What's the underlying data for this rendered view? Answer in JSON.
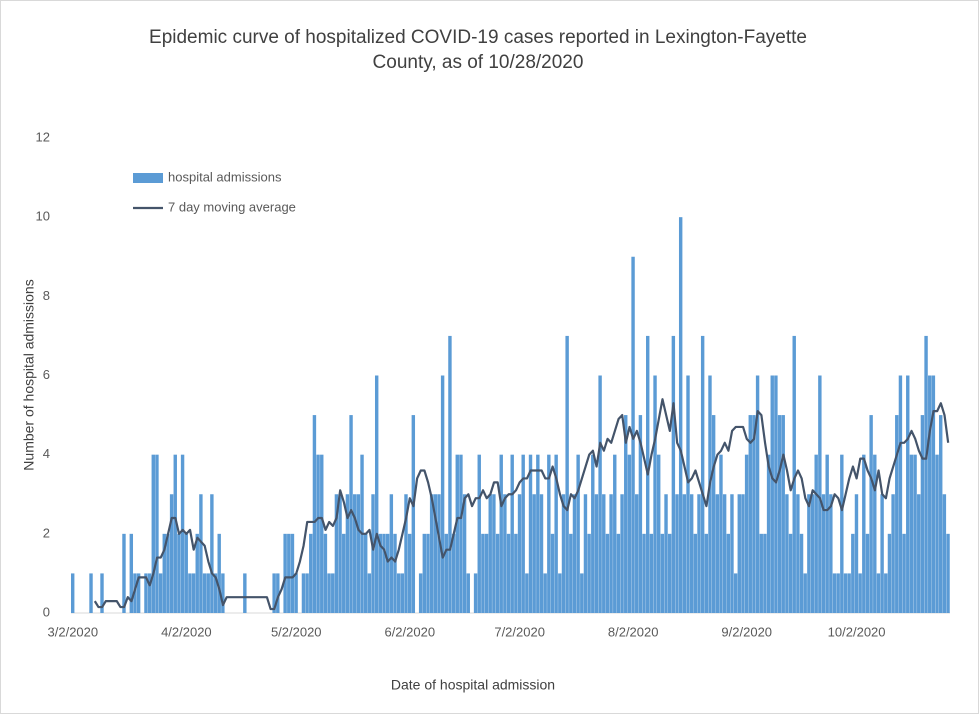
{
  "chart_data": {
    "type": "bar-line",
    "title": [
      "Epidemic curve of hospitalized COVID-19 cases reported in Lexington-Fayette",
      "County, as of 10/28/2020"
    ],
    "x_label": "Date of hospital admission",
    "y_label": "Number of hospital admissions",
    "legend": "top-left",
    "categories": [
      "3/2/2020",
      null,
      null,
      null,
      null,
      null,
      null,
      null,
      null,
      null,
      null,
      null,
      null,
      null,
      null,
      null,
      null,
      null,
      null,
      null,
      null,
      null,
      null,
      null,
      null,
      null,
      null,
      null,
      null,
      null,
      null,
      "4/2/2020",
      null,
      null,
      null,
      null,
      null,
      null,
      null,
      null,
      null,
      null,
      null,
      null,
      null,
      null,
      null,
      null,
      null,
      null,
      null,
      null,
      null,
      null,
      null,
      null,
      null,
      null,
      null,
      null,
      null,
      "5/2/2020",
      null,
      null,
      null,
      null,
      null,
      null,
      null,
      null,
      null,
      null,
      null,
      null,
      null,
      null,
      null,
      null,
      null,
      null,
      null,
      null,
      null,
      null,
      null,
      null,
      null,
      null,
      null,
      null,
      null,
      null,
      "6/2/2020",
      null,
      null,
      null,
      null,
      null,
      null,
      null,
      null,
      null,
      null,
      null,
      null,
      null,
      null,
      null,
      null,
      null,
      null,
      null,
      null,
      null,
      null,
      null,
      null,
      null,
      null,
      null,
      null,
      null,
      "7/2/2020",
      null,
      null,
      null,
      null,
      null,
      null,
      null,
      null,
      null,
      null,
      null,
      null,
      null,
      null,
      null,
      null,
      null,
      null,
      null,
      null,
      null,
      null,
      null,
      null,
      null,
      null,
      null,
      null,
      null,
      null,
      "8/2/2020",
      null,
      null,
      null,
      null,
      null,
      null,
      null,
      null,
      null,
      null,
      null,
      null,
      null,
      null,
      null,
      null,
      null,
      null,
      null,
      null,
      null,
      null,
      null,
      null,
      null,
      null,
      null,
      null,
      null,
      null,
      "9/2/2020",
      null,
      null,
      null,
      null,
      null,
      null,
      null,
      null,
      null,
      null,
      null,
      null,
      null,
      null,
      null,
      null,
      null,
      null,
      null,
      null,
      null,
      null,
      null,
      null,
      null,
      null,
      null,
      null,
      null,
      "10/2/2020",
      null,
      null,
      null,
      null,
      null,
      null,
      null,
      null,
      null,
      null,
      null,
      null,
      null,
      null,
      null,
      null,
      null,
      null,
      null,
      null,
      null,
      null,
      null,
      null,
      null
    ],
    "series": [
      {
        "name": "hospital admissions",
        "type": "bar",
        "color": "#5b9bd5",
        "values": [
          1,
          0,
          0,
          0,
          0,
          1,
          0,
          0,
          1,
          0,
          0,
          0,
          0,
          0,
          2,
          0,
          2,
          1,
          1,
          0,
          1,
          1,
          4,
          4,
          1,
          2,
          2,
          3,
          4,
          2,
          4,
          2,
          1,
          1,
          2,
          3,
          1,
          1,
          3,
          1,
          2,
          1,
          0,
          0,
          0,
          0,
          0,
          1,
          0,
          0,
          0,
          0,
          0,
          0,
          0,
          1,
          1,
          0,
          2,
          2,
          2,
          1,
          0,
          1,
          1,
          2,
          5,
          4,
          4,
          2,
          1,
          1,
          3,
          3,
          2,
          3,
          5,
          3,
          3,
          4,
          2,
          1,
          3,
          6,
          2,
          2,
          2,
          3,
          2,
          1,
          1,
          3,
          2,
          5,
          0,
          1,
          2,
          2,
          3,
          3,
          3,
          6,
          2,
          7,
          2,
          4,
          4,
          3,
          1,
          0,
          1,
          4,
          2,
          2,
          3,
          3,
          2,
          4,
          3,
          2,
          4,
          2,
          3,
          4,
          1,
          4,
          3,
          4,
          3,
          1,
          4,
          2,
          4,
          1,
          3,
          7,
          2,
          3,
          4,
          1,
          3,
          2,
          4,
          3,
          6,
          3,
          2,
          3,
          4,
          2,
          3,
          5,
          4,
          9,
          3,
          5,
          2,
          7,
          2,
          6,
          4,
          2,
          3,
          2,
          7,
          3,
          10,
          3,
          6,
          3,
          2,
          3,
          7,
          2,
          6,
          5,
          3,
          4,
          3,
          2,
          3,
          1,
          3,
          3,
          4,
          5,
          5,
          6,
          2,
          2,
          4,
          6,
          6,
          5,
          5,
          3,
          2,
          7,
          3,
          2,
          1,
          3,
          3,
          4,
          6,
          3,
          4,
          3,
          1,
          1,
          4,
          1,
          1,
          2,
          3,
          1,
          4,
          2,
          5,
          4,
          1,
          3,
          1,
          2,
          3,
          5,
          6,
          2,
          6,
          4,
          4,
          3,
          5,
          7,
          6,
          6,
          4,
          5,
          3,
          2
        ]
      },
      {
        "name": "7 day moving average",
        "type": "line",
        "color": "#44546a",
        "values": [
          null,
          null,
          null,
          null,
          null,
          null,
          0.3,
          0.15,
          0.15,
          0.3,
          0.3,
          0.3,
          0.3,
          0.15,
          0.15,
          0.4,
          0.3,
          0.6,
          0.9,
          0.9,
          0.9,
          0.7,
          1.0,
          1.4,
          1.4,
          1.6,
          2.0,
          2.4,
          2.4,
          2.0,
          2.1,
          2.0,
          2.1,
          1.6,
          1.9,
          1.8,
          1.7,
          1.3,
          1.0,
          0.9,
          0.6,
          0.2,
          0.4,
          0.4,
          0.4,
          0.4,
          0.4,
          0.4,
          0.4,
          0.4,
          0.4,
          0.4,
          0.4,
          0.4,
          0.1,
          0.1,
          0.4,
          0.6,
          0.9,
          0.9,
          0.9,
          1.0,
          1.3,
          1.7,
          2.3,
          2.3,
          2.3,
          2.4,
          2.4,
          2.1,
          2.3,
          2.2,
          2.4,
          3.1,
          2.8,
          2.4,
          2.6,
          2.4,
          2.1,
          2.0,
          2.0,
          2.1,
          1.6,
          2.0,
          1.7,
          1.6,
          1.3,
          1.4,
          1.3,
          1.6,
          2.0,
          2.4,
          2.9,
          2.7,
          3.4,
          3.6,
          3.6,
          3.3,
          2.9,
          2.4,
          1.9,
          1.4,
          1.6,
          1.6,
          2.0,
          2.4,
          2.4,
          2.9,
          3.0,
          2.7,
          2.9,
          2.9,
          3.1,
          2.9,
          3.0,
          3.3,
          3.3,
          2.7,
          2.9,
          3.0,
          3.0,
          3.1,
          3.3,
          3.4,
          3.4,
          3.6,
          3.6,
          3.6,
          3.6,
          3.4,
          3.4,
          3.7,
          3.4,
          3.0,
          2.7,
          2.6,
          3.0,
          2.9,
          3.1,
          3.4,
          3.7,
          4.0,
          4.1,
          3.7,
          4.3,
          4.1,
          4.4,
          4.3,
          4.6,
          4.9,
          5.0,
          4.3,
          4.7,
          4.4,
          4.6,
          4.3,
          3.9,
          3.5,
          4.0,
          4.4,
          4.9,
          5.4,
          5.0,
          4.6,
          5.3,
          4.3,
          4.1,
          3.7,
          3.3,
          3.4,
          3.6,
          3.3,
          3.0,
          2.7,
          3.3,
          3.7,
          4.0,
          4.1,
          4.3,
          4.1,
          4.6,
          4.7,
          4.7,
          4.7,
          4.4,
          4.3,
          4.4,
          5.1,
          5.0,
          4.3,
          3.7,
          3.4,
          3.3,
          3.6,
          4.0,
          3.6,
          3.1,
          3.4,
          3.6,
          3.4,
          2.9,
          2.7,
          3.1,
          3.0,
          2.9,
          2.6,
          2.6,
          2.7,
          3.0,
          2.9,
          2.6,
          3.0,
          3.4,
          3.7,
          3.4,
          3.9,
          3.9,
          3.6,
          3.4,
          3.1,
          3.6,
          3.0,
          2.9,
          3.4,
          3.7,
          4.0,
          4.3,
          4.3,
          4.4,
          4.6,
          4.4,
          4.1,
          3.9,
          3.9,
          4.6,
          5.1,
          5.1,
          5.3,
          5.0,
          4.3
        ]
      }
    ],
    "ylim": [
      0,
      12
    ],
    "yticks": [
      0,
      2,
      4,
      6,
      8,
      10,
      12
    ],
    "grid": false
  }
}
